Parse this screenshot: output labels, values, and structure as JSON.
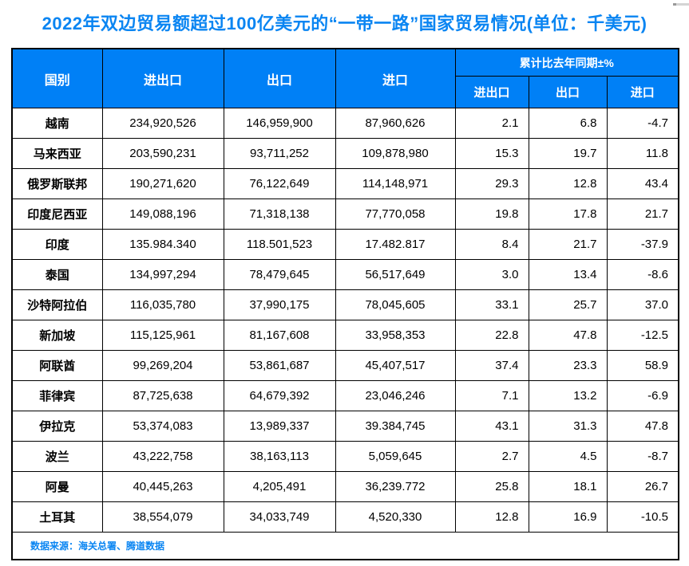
{
  "page": {
    "title": "2022年双边贸易额超过100亿美元的“一带一路”国家贸易情况(单位：千美元)",
    "source_note": "数据来源：海关总署、腾道数据"
  },
  "colors": {
    "title_text": "#0a85f2",
    "header_bg": "#0080f6",
    "header_text": "#ffffff",
    "table_border": "#000000",
    "body_text": "#000000",
    "source_text": "#0a85f2",
    "scrollbar_fragment": "#d4d4d4"
  },
  "table": {
    "header": {
      "country": "国别",
      "total": "进出口",
      "export": "出口",
      "import": "进口",
      "group": "累计比去年同期±%",
      "group_sub": {
        "total": "进出口",
        "export": "出口",
        "import": "进口"
      }
    },
    "rows": [
      {
        "country": "越南",
        "total": "234,920,526",
        "export": "146,959,900",
        "import": "87,960,626",
        "total_pct": "2.1",
        "export_pct": "6.8",
        "import_pct": "-4.7"
      },
      {
        "country": "马来西亚",
        "total": "203,590,231",
        "export": "93,711,252",
        "import": "109,878,980",
        "total_pct": "15.3",
        "export_pct": "19.7",
        "import_pct": "11.8"
      },
      {
        "country": "俄罗斯联邦",
        "total": "190,271,620",
        "export": "76,122,649",
        "import": "114,148,971",
        "total_pct": "29.3",
        "export_pct": "12.8",
        "import_pct": "43.4"
      },
      {
        "country": "印度尼西亚",
        "total": "149,088,196",
        "export": "71,318,138",
        "import": "77,770,058",
        "total_pct": "19.8",
        "export_pct": "17.8",
        "import_pct": "21.7"
      },
      {
        "country": "印度",
        "total": "135.984.340",
        "export": "118.501,523",
        "import": "17.482.817",
        "total_pct": "8.4",
        "export_pct": "21.7",
        "import_pct": "-37.9"
      },
      {
        "country": "泰国",
        "total": "134,997,294",
        "export": "78,479,645",
        "import": "56,517,649",
        "total_pct": "3.0",
        "export_pct": "13.4",
        "import_pct": "-8.6"
      },
      {
        "country": "沙特阿拉伯",
        "total": "116,035,780",
        "export": "37,990,175",
        "import": "78,045,605",
        "total_pct": "33.1",
        "export_pct": "25.7",
        "import_pct": "37.0"
      },
      {
        "country": "新加坡",
        "total": "115,125,961",
        "export": "81,167,608",
        "import": "33,958,353",
        "total_pct": "22.8",
        "export_pct": "47.8",
        "import_pct": "-12.5"
      },
      {
        "country": "阿联酋",
        "total": "99,269,204",
        "export": "53,861,687",
        "import": "45,407,517",
        "total_pct": "37.4",
        "export_pct": "23.3",
        "import_pct": "58.9"
      },
      {
        "country": "菲律宾",
        "total": "87,725,638",
        "export": "64,679,392",
        "import": "23,046,246",
        "total_pct": "7.1",
        "export_pct": "13.2",
        "import_pct": "-6.9"
      },
      {
        "country": "伊拉克",
        "total": "53,374,083",
        "export": "13,989,337",
        "import": "39.384,745",
        "total_pct": "43.1",
        "export_pct": "31.3",
        "import_pct": "47.8"
      },
      {
        "country": "波兰",
        "total": "43,222,758",
        "export": "38,163,113",
        "import": "5,059,645",
        "total_pct": "2.7",
        "export_pct": "4.5",
        "import_pct": "-8.7"
      },
      {
        "country": "阿曼",
        "total": "40,445,263",
        "export": "4,205,491",
        "import": "36,239.772",
        "total_pct": "25.8",
        "export_pct": "18.1",
        "import_pct": "26.7"
      },
      {
        "country": "土耳其",
        "total": "38,554,079",
        "export": "34,033,749",
        "import": "4,520,330",
        "total_pct": "12.8",
        "export_pct": "16.9",
        "import_pct": "-10.5"
      }
    ]
  },
  "chart_data": {
    "type": "table",
    "title": "2022年双边贸易额超过100亿美元的“一带一路”国家贸易情况(单位：千美元)",
    "columns": [
      "国别",
      "进出口",
      "出口",
      "进口",
      "累计比去年同期±% 进出口",
      "累计比去年同期±% 出口",
      "累计比去年同期±% 进口"
    ],
    "rows": [
      [
        "越南",
        "234,920,526",
        "146,959,900",
        "87,960,626",
        2.1,
        6.8,
        -4.7
      ],
      [
        "马来西亚",
        "203,590,231",
        "93,711,252",
        "109,878,980",
        15.3,
        19.7,
        11.8
      ],
      [
        "俄罗斯联邦",
        "190,271,620",
        "76,122,649",
        "114,148,971",
        29.3,
        12.8,
        43.4
      ],
      [
        "印度尼西亚",
        "149,088,196",
        "71,318,138",
        "77,770,058",
        19.8,
        17.8,
        21.7
      ],
      [
        "印度",
        "135.984.340",
        "118.501,523",
        "17.482.817",
        8.4,
        21.7,
        -37.9
      ],
      [
        "泰国",
        "134,997,294",
        "78,479,645",
        "56,517,649",
        3.0,
        13.4,
        -8.6
      ],
      [
        "沙特阿拉伯",
        "116,035,780",
        "37,990,175",
        "78,045,605",
        33.1,
        25.7,
        37.0
      ],
      [
        "新加坡",
        "115,125,961",
        "81,167,608",
        "33,958,353",
        22.8,
        47.8,
        -12.5
      ],
      [
        "阿联酋",
        "99,269,204",
        "53,861,687",
        "45,407,517",
        37.4,
        23.3,
        58.9
      ],
      [
        "菲律宾",
        "87,725,638",
        "64,679,392",
        "23,046,246",
        7.1,
        13.2,
        -6.9
      ],
      [
        "伊拉克",
        "53,374,083",
        "13,989,337",
        "39.384,745",
        43.1,
        31.3,
        47.8
      ],
      [
        "波兰",
        "43,222,758",
        "38,163,113",
        "5,059,645",
        2.7,
        4.5,
        -8.7
      ],
      [
        "阿曼",
        "40,445,263",
        "4,205,491",
        "36,239.772",
        25.8,
        18.1,
        26.7
      ],
      [
        "土耳其",
        "38,554,079",
        "34,033,749",
        "4,520,330",
        12.8,
        16.9,
        -10.5
      ]
    ],
    "source": "数据来源：海关总署、腾道数据"
  }
}
